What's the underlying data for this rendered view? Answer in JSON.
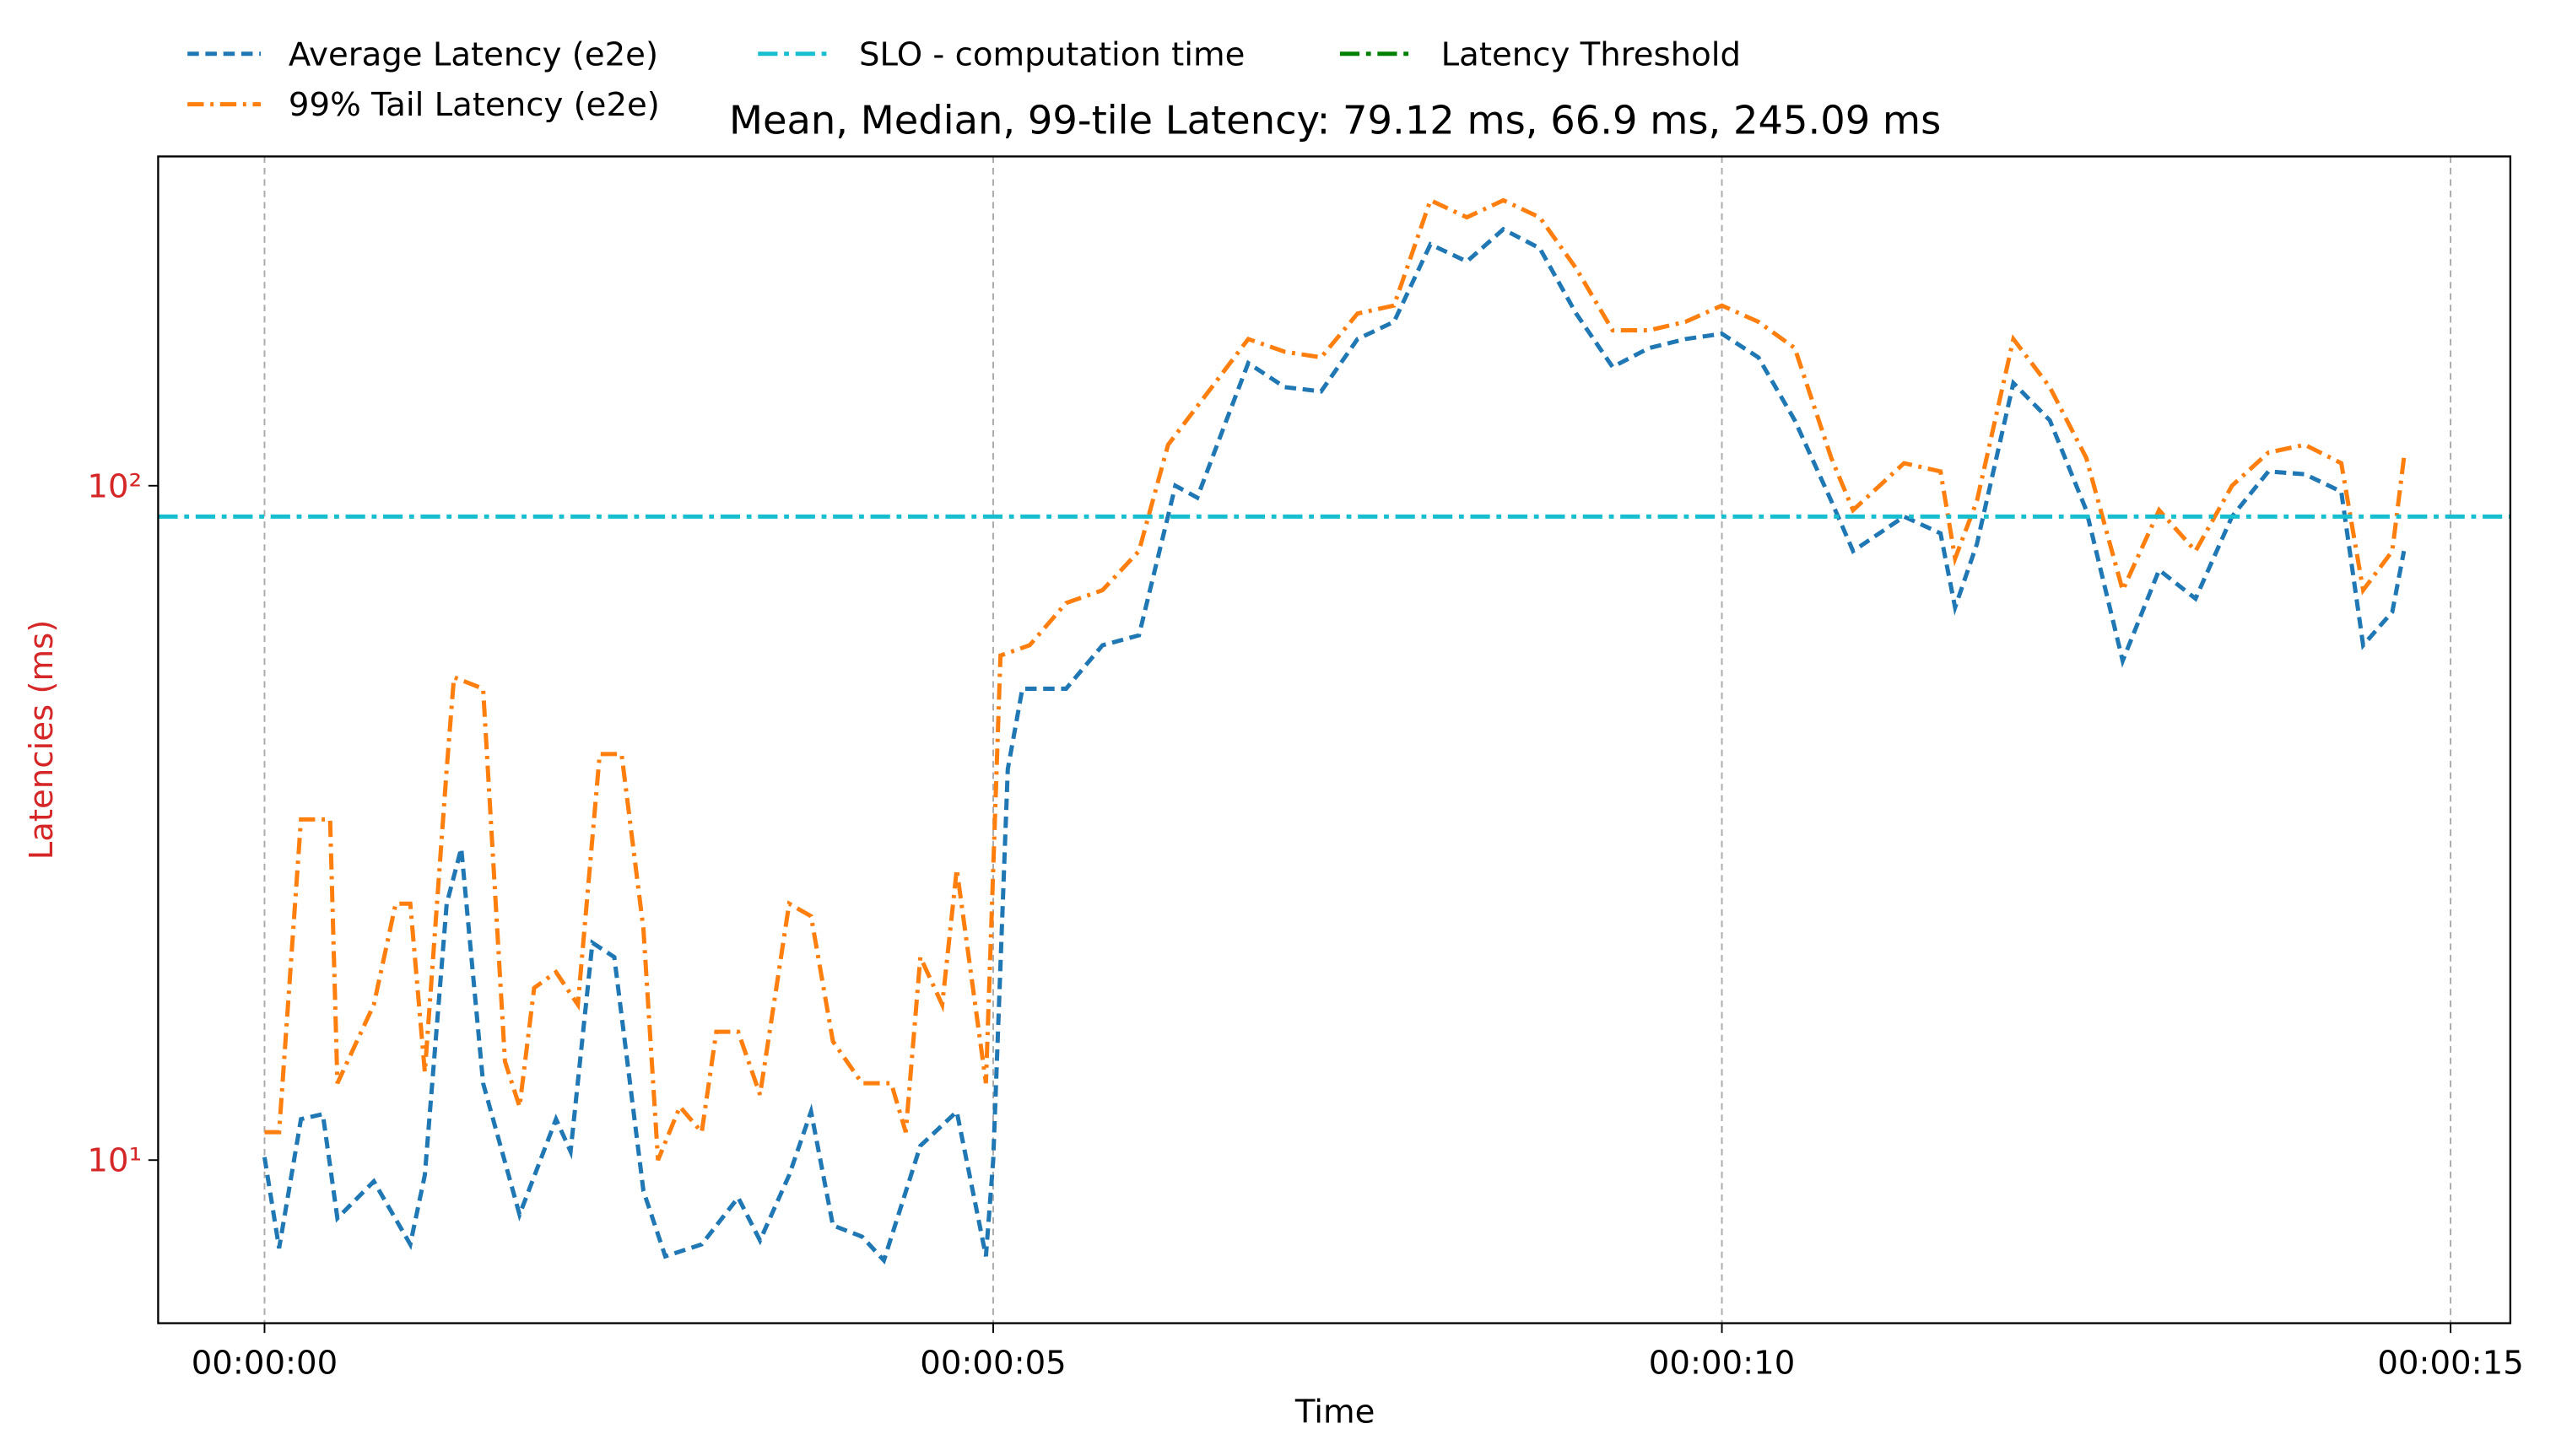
{
  "chart_data": {
    "type": "line",
    "title": "Mean, Median, 99-tile Latency: 79.12 ms, 66.9 ms, 245.09 ms",
    "x_label": "Time",
    "y_label": "Latencies (ms)",
    "y_label_color": "#d62728",
    "log_y": true,
    "grid_x": true,
    "xlim": [
      -0.73,
      15.41
    ],
    "xticks": [
      {
        "value": 0,
        "label": "00:00:00"
      },
      {
        "value": 5,
        "label": "00:00:05"
      },
      {
        "value": 10,
        "label": "00:00:10"
      },
      {
        "value": 15,
        "label": "00:00:15"
      }
    ],
    "ylim": [
      5.73,
      307.8
    ],
    "yticks": [
      {
        "value": 10,
        "label": "10¹"
      },
      {
        "value": 100,
        "label": "10²"
      }
    ],
    "series": [
      {
        "name": "Average Latency (e2e)",
        "color": "#1f77b4",
        "dash": "7,4",
        "x": [
          0,
          0.1,
          0.25,
          0.4,
          0.5,
          0.75,
          1.0,
          1.1,
          1.25,
          1.35,
          1.5,
          1.75,
          2.0,
          2.1,
          2.25,
          2.4,
          2.6,
          2.75,
          3.0,
          3.25,
          3.4,
          3.6,
          3.75,
          3.9,
          4.1,
          4.25,
          4.5,
          4.75,
          4.95,
          5.0,
          5.1,
          5.2,
          5.5,
          5.75,
          6.0,
          6.25,
          6.4,
          6.6,
          6.75,
          7.0,
          7.25,
          7.5,
          7.75,
          8.0,
          8.25,
          8.5,
          8.75,
          9.0,
          9.25,
          9.5,
          9.75,
          10.0,
          10.25,
          10.5,
          10.75,
          10.9,
          11.25,
          11.5,
          11.6,
          11.75,
          12.0,
          12.25,
          12.5,
          12.75,
          13.0,
          13.25,
          13.5,
          13.75,
          14.0,
          14.25,
          14.4,
          14.6,
          14.68
        ],
        "values": [
          10.1,
          7.4,
          11.5,
          11.7,
          8.2,
          9.3,
          7.5,
          9.5,
          24,
          29,
          13,
          8.3,
          11.5,
          10.3,
          21,
          20,
          9,
          7.2,
          7.5,
          8.8,
          7.6,
          9.5,
          11.8,
          8,
          7.7,
          7.1,
          10.5,
          11.8,
          7.2,
          10,
          38,
          50,
          50,
          58,
          60,
          100,
          96,
          125,
          152,
          140,
          138,
          165,
          175,
          228,
          215,
          240,
          225,
          180,
          150,
          160,
          165,
          168,
          155,
          125,
          95,
          80,
          90,
          85,
          66,
          82,
          142,
          125,
          92,
          55,
          75,
          68,
          90,
          105,
          104,
          98,
          58,
          65,
          80
        ]
      },
      {
        "name": "99% Tail Latency (e2e)",
        "color": "#ff7f0e",
        "dash": "10,4,2,4",
        "x": [
          0,
          0.1,
          0.25,
          0.45,
          0.5,
          0.75,
          0.9,
          1.0,
          1.1,
          1.25,
          1.3,
          1.5,
          1.65,
          1.75,
          1.85,
          2.0,
          2.15,
          2.3,
          2.45,
          2.6,
          2.7,
          2.85,
          3.0,
          3.1,
          3.25,
          3.4,
          3.6,
          3.75,
          3.9,
          4.1,
          4.3,
          4.4,
          4.5,
          4.65,
          4.75,
          4.95,
          5.05,
          5.25,
          5.5,
          5.75,
          6.0,
          6.2,
          6.5,
          6.75,
          7.0,
          7.25,
          7.5,
          7.75,
          8.0,
          8.25,
          8.5,
          8.75,
          9.0,
          9.25,
          9.5,
          9.75,
          10.0,
          10.25,
          10.5,
          10.75,
          10.9,
          11.25,
          11.5,
          11.6,
          11.75,
          12.0,
          12.25,
          12.5,
          12.75,
          13.0,
          13.25,
          13.5,
          13.75,
          14.0,
          14.25,
          14.4,
          14.6,
          14.68
        ],
        "values": [
          11,
          11,
          32,
          32,
          13,
          17,
          24,
          24,
          13.5,
          38,
          52,
          50,
          14,
          12,
          18,
          19,
          17,
          40,
          40,
          22,
          10,
          12,
          11,
          15.5,
          15.5,
          12.5,
          24,
          23,
          15,
          13,
          13,
          11,
          20,
          17,
          27,
          13,
          56,
          58,
          67,
          70,
          80,
          115,
          140,
          165,
          158,
          155,
          180,
          185,
          265,
          250,
          265,
          250,
          210,
          170,
          170,
          175,
          185,
          175,
          160,
          110,
          92,
          108,
          105,
          78,
          95,
          165,
          140,
          110,
          70,
          92,
          80,
          100,
          112,
          115,
          108,
          70,
          80,
          110
        ]
      },
      {
        "name": "SLO - computation time",
        "color": "#17becf",
        "dash": "12,4,3,4",
        "hline": 90
      },
      {
        "name": "Latency Threshold",
        "color": "#008000",
        "dash": "12,4,3,4"
      }
    ]
  }
}
